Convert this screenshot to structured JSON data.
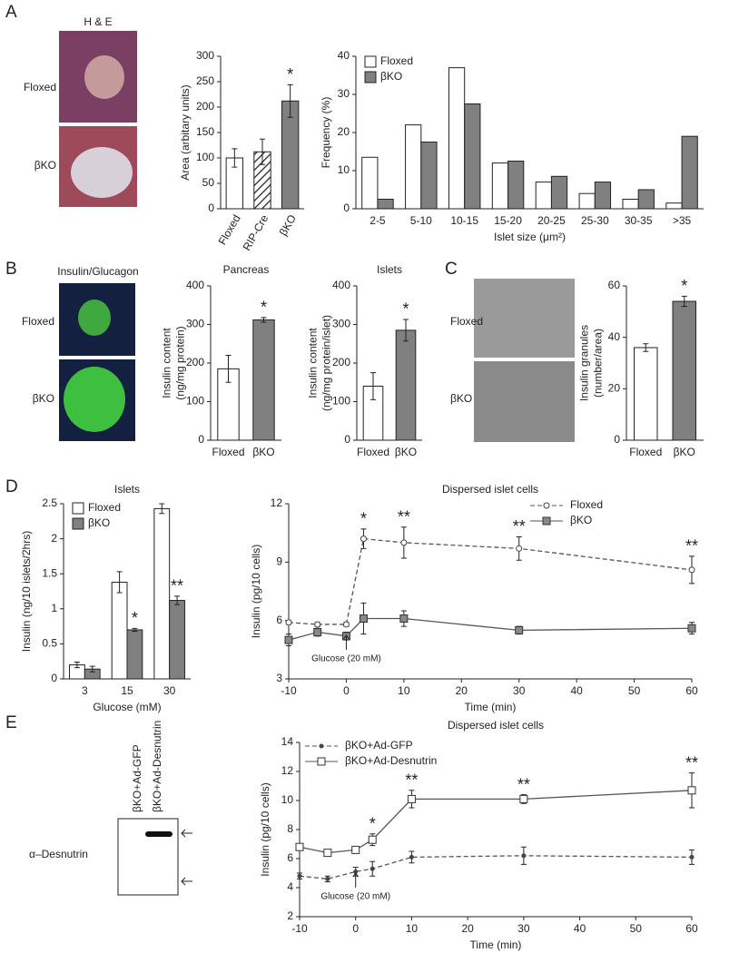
{
  "labels": {
    "panels": [
      "A",
      "B",
      "C",
      "D",
      "E"
    ],
    "images": [
      {
        "title": "H & E",
        "rows": [
          "Floxed",
          "βKO"
        ]
      },
      {
        "title": "Insulin/Glucagon",
        "rows": [
          "Floxed",
          "βKO"
        ]
      },
      {
        "rows": [
          "Floxed",
          "βKO"
        ]
      }
    ],
    "blot": {
      "lanes": [
        "βKO+Ad-GFP",
        "βKO+Ad-Desnutrin"
      ],
      "label": "α–Desnutrin"
    }
  },
  "chart_data": [
    {
      "type": "bar",
      "ylabel": [
        "Area (arbitary units)"
      ],
      "categories": [
        "Floxed",
        "RIP-Cre",
        "βKO"
      ],
      "values": [
        100,
        112,
        212
      ],
      "errors": [
        18,
        25,
        32
      ],
      "colors": [
        "#ffffff",
        "#ffffff",
        "#808080"
      ],
      "hatched": [
        false,
        true,
        false
      ],
      "annotations": [
        null,
        null,
        "*"
      ],
      "ylim": [
        0,
        300
      ],
      "yticks": [
        0,
        50,
        100,
        150,
        200,
        250,
        300
      ]
    },
    {
      "type": "bar",
      "xlabel": "Islet size (μm²)",
      "ylabel": [
        "Frequency (%)"
      ],
      "categories": [
        "2-5",
        "5-10",
        "10-15",
        "15-20",
        "20-25",
        "25-30",
        "30-35",
        ">35"
      ],
      "series": [
        {
          "name": "Floxed",
          "color": "#ffffff",
          "values": [
            13.5,
            22,
            37,
            12,
            7,
            4,
            2.5,
            1.5
          ]
        },
        {
          "name": "βKO",
          "color": "#808080",
          "values": [
            2.5,
            17.5,
            27.5,
            12.5,
            8.5,
            7,
            5,
            19
          ]
        }
      ],
      "ylim": [
        0,
        40
      ],
      "yticks": [
        0,
        10,
        20,
        30,
        40
      ],
      "legend": "upper left"
    },
    {
      "type": "bar",
      "title": "Pancreas",
      "ylabel": [
        "Insulin content",
        "(ng/mg protein)"
      ],
      "categories": [
        "Floxed",
        "βKO"
      ],
      "values": [
        185,
        312
      ],
      "errors": [
        35,
        6
      ],
      "colors": [
        "#ffffff",
        "#808080"
      ],
      "annotations": [
        null,
        "*"
      ],
      "ylim": [
        0,
        400
      ],
      "yticks": [
        0,
        100,
        200,
        300,
        400
      ]
    },
    {
      "type": "bar",
      "title": "Islets",
      "ylabel": [
        "Insulin content",
        "(ng/mg protein/islet)"
      ],
      "categories": [
        "Floxed",
        "βKO"
      ],
      "values": [
        140,
        285
      ],
      "errors": [
        35,
        28
      ],
      "colors": [
        "#ffffff",
        "#808080"
      ],
      "annotations": [
        null,
        "*"
      ],
      "ylim": [
        0,
        400
      ],
      "yticks": [
        0,
        100,
        200,
        300,
        400
      ]
    },
    {
      "type": "bar",
      "ylabel": [
        "Insulin granules",
        "(number/area)"
      ],
      "categories": [
        "Floxed",
        "βKO"
      ],
      "values": [
        36,
        54
      ],
      "errors": [
        1.5,
        2
      ],
      "colors": [
        "#ffffff",
        "#808080"
      ],
      "annotations": [
        null,
        "*"
      ],
      "ylim": [
        0,
        60
      ],
      "yticks": [
        0,
        20,
        40,
        60
      ]
    },
    {
      "type": "bar",
      "title": "Islets",
      "xlabel": "Glucose (mM)",
      "ylabel": [
        "Insulin (ng/10 islets/2hrs)"
      ],
      "categories": [
        "3",
        "15",
        "30"
      ],
      "series": [
        {
          "name": "Floxed",
          "color": "#ffffff",
          "values": [
            0.2,
            1.38,
            2.43
          ],
          "errors": [
            0.04,
            0.15,
            0.07
          ]
        },
        {
          "name": "βKO",
          "color": "#808080",
          "values": [
            0.14,
            0.7,
            1.12
          ],
          "errors": [
            0.04,
            0.02,
            0.06
          ],
          "annotations": [
            null,
            "*",
            "**"
          ]
        }
      ],
      "ylim": [
        0,
        2.5
      ],
      "yticks": [
        0,
        0.5,
        1,
        1.5,
        2,
        2.5
      ],
      "legend": "upper left"
    },
    {
      "type": "line",
      "title": "Dispersed islet cells",
      "xlabel": "Time (min)",
      "ylabel": [
        "Insulin (pg/10 cells)"
      ],
      "note": "Glucose (20 mM)",
      "x": [
        -10,
        -5,
        0,
        3,
        10,
        30,
        60
      ],
      "series": [
        {
          "name": "Floxed",
          "color": "#555555",
          "dashed": true,
          "marker": "circle",
          "values": [
            5.9,
            5.8,
            5.8,
            10.2,
            10,
            9.7,
            8.6
          ],
          "errors": [
            0.1,
            0.1,
            0.1,
            0.5,
            0.8,
            0.6,
            0.7
          ],
          "annotations": [
            null,
            null,
            null,
            "*",
            "**",
            "**",
            "**"
          ]
        },
        {
          "name": "βKO",
          "color": "#555555",
          "dashed": false,
          "marker": "square",
          "values": [
            5,
            5.4,
            5.2,
            6.1,
            6.1,
            5.5,
            5.6
          ],
          "errors": [
            0.3,
            0.2,
            0.2,
            0.8,
            0.4,
            0.2,
            0.3
          ]
        }
      ],
      "xlim": [
        -10,
        60
      ],
      "xticks": [
        -10,
        0,
        10,
        20,
        30,
        40,
        50,
        60
      ],
      "ylim": [
        3,
        12
      ],
      "yticks": [
        3,
        6,
        9,
        12
      ],
      "legend": "upper right"
    },
    {
      "type": "line",
      "title": "Dispersed islet cells",
      "xlabel": "Time (min)",
      "ylabel": [
        "Insulin (pg/10 cells)"
      ],
      "note": "Glucose (20 mM)",
      "x": [
        -10,
        -5,
        0,
        3,
        10,
        30,
        60
      ],
      "series": [
        {
          "name": "βKO+Ad-GFP",
          "color": "#555555",
          "dashed": true,
          "marker": "dot",
          "values": [
            4.8,
            4.6,
            5.1,
            5.3,
            6.1,
            6.2,
            6.1
          ],
          "errors": [
            0.2,
            0.2,
            0.3,
            0.5,
            0.4,
            0.6,
            0.5
          ]
        },
        {
          "name": "βKO+Ad-Desnutrin",
          "color": "#555555",
          "dashed": false,
          "marker": "open-square",
          "values": [
            6.8,
            6.4,
            6.6,
            7.3,
            10.1,
            10.1,
            10.7
          ],
          "errors": [
            0.2,
            0.2,
            0.2,
            0.4,
            0.6,
            0.3,
            1.2
          ],
          "annotations": [
            null,
            null,
            null,
            "*",
            "**",
            "**",
            "**"
          ]
        }
      ],
      "xlim": [
        -10,
        60
      ],
      "xticks": [
        -10,
        0,
        10,
        20,
        30,
        40,
        50,
        60
      ],
      "ylim": [
        2,
        14
      ],
      "yticks": [
        2,
        4,
        6,
        8,
        10,
        12,
        14
      ],
      "legend": "upper left"
    }
  ]
}
